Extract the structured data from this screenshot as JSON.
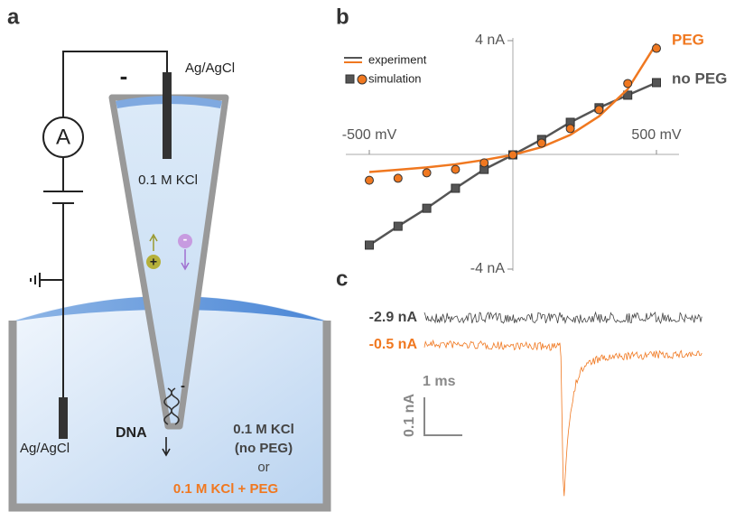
{
  "panel_a": {
    "label": "a",
    "top_electrode": "Ag/AgCl",
    "electrode_sign": "-",
    "ammeter": "A",
    "pipette_solution": "0.1 M KCl",
    "cation": "+",
    "anion": "-",
    "dna_charge": "-",
    "dna": "DNA",
    "bottom_electrode": "Ag/AgCl",
    "bath_line1": "0.1 M KCl",
    "bath_line2": "(no PEG)",
    "bath_or": "or",
    "bath_peg": "0.1 M KCl + PEG"
  },
  "chart_data": {
    "type": "line",
    "label": "b",
    "legend": [
      "experiment",
      "simulation"
    ],
    "x": [
      -500,
      -400,
      -300,
      -200,
      -100,
      0,
      100,
      200,
      300,
      400,
      500
    ],
    "xlim": [
      -500,
      500
    ],
    "xticks": [
      {
        "value": -500,
        "label": "-500 mV"
      },
      {
        "value": 500,
        "label": "500 mV"
      }
    ],
    "ylim": [
      -4,
      4
    ],
    "yticks": [
      {
        "value": 4,
        "label": "4 nA"
      },
      {
        "value": -4,
        "label": "-4 nA"
      }
    ],
    "series": [
      {
        "name": "PEG",
        "color": "#f07820",
        "marker": "circle",
        "values": [
          -0.6,
          -0.52,
          -0.44,
          -0.33,
          -0.18,
          0,
          0.27,
          0.7,
          1.35,
          2.3,
          3.9
        ],
        "simulation_values": [
          -0.89,
          -0.82,
          -0.63,
          -0.51,
          -0.28,
          0,
          0.41,
          0.92,
          1.58,
          2.5,
          3.73
        ]
      },
      {
        "name": "no PEG",
        "color": "#555555",
        "marker": "square",
        "values": [
          -3.16,
          -2.5,
          -1.87,
          -1.17,
          -0.51,
          0,
          0.54,
          1.14,
          1.65,
          2.09,
          2.53
        ],
        "simulation_values": [
          -3.16,
          -2.5,
          -1.87,
          -1.17,
          -0.51,
          0,
          0.54,
          1.14,
          1.65,
          2.09,
          2.53
        ]
      }
    ]
  },
  "panel_c": {
    "label": "c",
    "trace_labels": [
      "-2.9 nA",
      "-0.5 nA"
    ],
    "time_scale": "1 ms",
    "current_scale": "0.1 nA"
  }
}
